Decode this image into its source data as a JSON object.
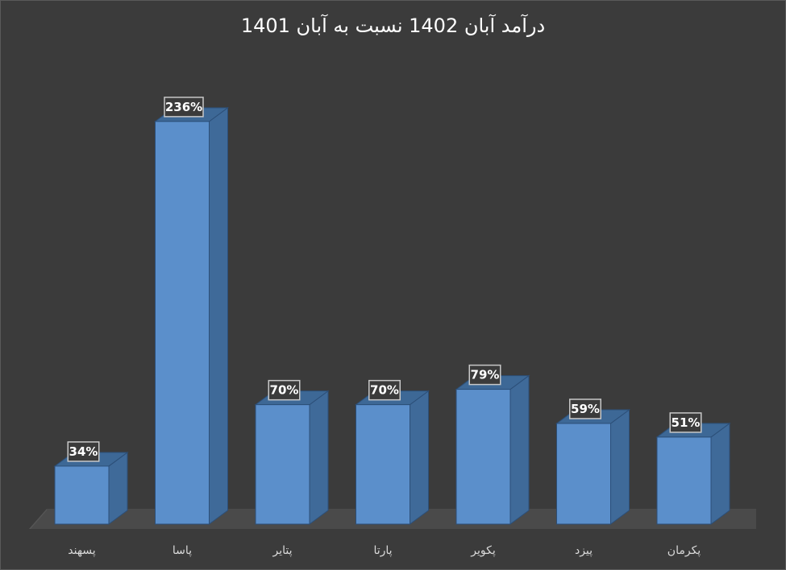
{
  "chart_data": {
    "type": "bar",
    "title": "درآمد آبان 1402 نسبت به آبان 1401",
    "categories": [
      "پسهند",
      "پاسا",
      "پتایر",
      "پارتا",
      "پکویر",
      "پیزد",
      "پکرمان"
    ],
    "values": [
      34,
      236,
      70,
      70,
      79,
      59,
      51
    ],
    "data_labels": [
      "34%",
      "236%",
      "70%",
      "70%",
      "79%",
      "59%",
      "51%"
    ],
    "ylim": [
      0,
      260
    ],
    "grid": false,
    "legend": "none",
    "style": "3d-column",
    "colors": {
      "bar_front": "#5b8fcb",
      "bar_side": "#3f6a99",
      "bar_top": "#3d6896",
      "floor": "#4a4a4a",
      "background": "#3b3b3b"
    }
  }
}
